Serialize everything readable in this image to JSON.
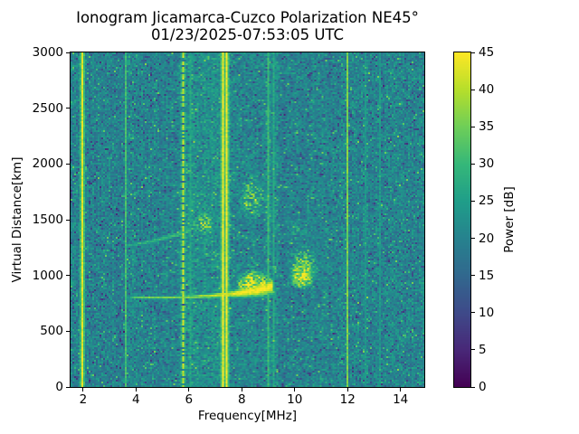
{
  "chart_data": {
    "type": "heatmap",
    "title": "Ionogram Jicamarca-Cuzco Polarization NE45°",
    "subtitle": "01/23/2025-07:53:05 UTC",
    "xlabel": "Frequency[MHz]",
    "ylabel": "Virtual Distance[km]",
    "xlim": [
      1.525,
      14.9
    ],
    "ylim": [
      0,
      3000
    ],
    "xticks": [
      2,
      4,
      6,
      8,
      10,
      12,
      14
    ],
    "yticks": [
      0,
      500,
      1000,
      1500,
      2000,
      2500,
      3000
    ],
    "colorbar": {
      "label": "Power [dB]",
      "ticks": [
        0,
        5,
        10,
        15,
        20,
        25,
        30,
        35,
        40,
        45
      ],
      "clim": [
        0,
        45
      ],
      "colormap": "viridis"
    },
    "noise": {
      "mean_db": 20.5,
      "dark_speck_prob": 0.09,
      "bright_speck_prob": 0.04
    },
    "noise_bands": [
      {
        "f0": 1.5,
        "f1": 3.55,
        "delta_db": -0.7
      },
      {
        "f0": 5.82,
        "f1": 7.28,
        "delta_db": 2.3
      },
      {
        "f0": 7.5,
        "f1": 8.25,
        "delta_db": 1.0
      },
      {
        "f0": 8.9,
        "f1": 9.35,
        "delta_db": 1.5
      }
    ],
    "rfi_lines": [
      {
        "f": 2.0,
        "db": 43,
        "style": "solid"
      },
      {
        "f": 3.61,
        "db": 31,
        "style": "solid"
      },
      {
        "f": 5.77,
        "db": 41,
        "style": "dashed"
      },
      {
        "f": 6.03,
        "db": 26.5,
        "style": "solid"
      },
      {
        "f": 7.3,
        "db": 44,
        "style": "solid"
      },
      {
        "f": 7.45,
        "db": 44,
        "style": "solid"
      },
      {
        "f": 9.01,
        "db": 30,
        "style": "solid"
      },
      {
        "f": 9.22,
        "db": 27,
        "style": "solid"
      },
      {
        "f": 12.0,
        "db": 36,
        "style": "solid"
      },
      {
        "f": 12.7,
        "db": 23.5,
        "style": "solid"
      },
      {
        "f": 13.25,
        "db": 24,
        "style": "solid"
      }
    ],
    "echo_traces": [
      {
        "name": "first-hop-F-trace",
        "points": [
          {
            "f": 3.55,
            "km": 812,
            "db": 25,
            "sigma_km": 14
          },
          {
            "f": 4.1,
            "km": 803,
            "db": 34,
            "sigma_km": 15
          },
          {
            "f": 5.0,
            "km": 800,
            "db": 36,
            "sigma_km": 16
          },
          {
            "f": 6.0,
            "km": 808,
            "db": 37,
            "sigma_km": 18
          },
          {
            "f": 7.0,
            "km": 820,
            "db": 40,
            "sigma_km": 24
          },
          {
            "f": 7.6,
            "km": 833,
            "db": 43,
            "sigma_km": 32
          },
          {
            "f": 8.1,
            "km": 848,
            "db": 45,
            "sigma_km": 48
          },
          {
            "f": 8.6,
            "km": 868,
            "db": 45,
            "sigma_km": 62
          },
          {
            "f": 9.15,
            "km": 900,
            "db": 44,
            "sigma_km": 72
          }
        ]
      },
      {
        "name": "second-hop-F-trace",
        "points": [
          {
            "f": 3.7,
            "km": 1268,
            "db": 27,
            "sigma_km": 20
          },
          {
            "f": 4.4,
            "km": 1298,
            "db": 29,
            "sigma_km": 22
          },
          {
            "f": 5.1,
            "km": 1335,
            "db": 30,
            "sigma_km": 24
          },
          {
            "f": 5.7,
            "km": 1375,
            "db": 30,
            "sigma_km": 26
          },
          {
            "f": 6.1,
            "km": 1408,
            "db": 31,
            "sigma_km": 28
          }
        ]
      }
    ],
    "patches": [
      {
        "name": "second-hop-blob",
        "f0": 5.95,
        "f1": 7.15,
        "km0": 1325,
        "km1": 1610,
        "peak_db": 35,
        "gamma": 0.8,
        "speckle": 0.5
      },
      {
        "name": "second-hop-spread",
        "f0": 7.7,
        "f1": 9.1,
        "km0": 1400,
        "km1": 2000,
        "peak_db": 33.5,
        "gamma": 0.9,
        "speckle": 0.55
      },
      {
        "name": "foF2-cusp",
        "f0": 7.6,
        "f1": 9.35,
        "km0": 780,
        "km1": 1075,
        "peak_db": 44,
        "gamma": 0.6,
        "speckle": 0.35
      },
      {
        "name": "spread-f-halo",
        "f0": 9.5,
        "f1": 11.15,
        "km0": 830,
        "km1": 1350,
        "peak_db": 33,
        "gamma": 0.8,
        "speckle": 0.5
      },
      {
        "name": "spread-f-core",
        "f0": 9.7,
        "f1": 10.85,
        "km0": 850,
        "km1": 1140,
        "peak_db": 44,
        "gamma": 0.55,
        "speckle": 0.3
      },
      {
        "name": "spread-f-upper",
        "f0": 9.6,
        "f1": 10.6,
        "km0": 1250,
        "km1": 1580,
        "peak_db": 26.5,
        "gamma": 1.0,
        "speckle": 0.6
      }
    ]
  }
}
